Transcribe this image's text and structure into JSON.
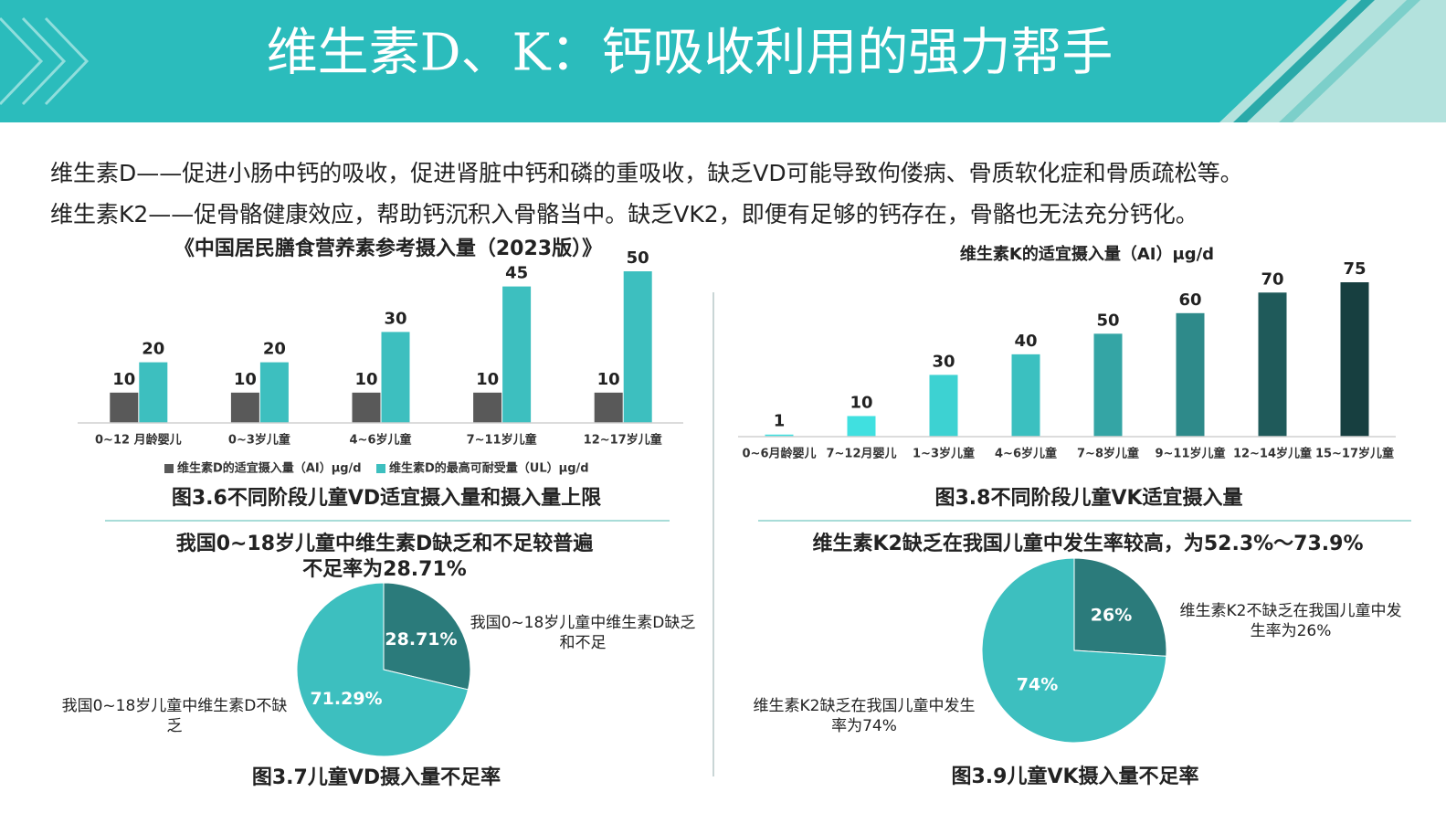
{
  "header": {
    "title": "维生素D、K：钙吸收利用的强力帮手"
  },
  "paragraphs": [
    "维生素D——促进小肠中钙的吸收，促进肾脏中钙和磷的重吸收，缺乏VD可能导致佝偻病、骨质软化症和骨质疏松等。",
    "维生素K2——促骨骼健康效应，帮助钙沉积入骨骼当中。缺乏VK2，即便有足够的钙存在，骨骼也无法充分钙化。"
  ],
  "chart_data": [
    {
      "type": "bar",
      "title": "《中国居民膳食营养素参考摄入量（2023版）》",
      "caption": "图3.6不同阶段儿童VD适宜摄入量和摄入量上限",
      "categories": [
        "0~12 月龄婴儿",
        "0~3岁儿童",
        "4~6岁儿童",
        "7~11岁儿童",
        "12~17岁儿童"
      ],
      "series": [
        {
          "name": "维生素D的适宜摄入量（AI）μg/d",
          "color": "#595959",
          "values": [
            10,
            10,
            10,
            10,
            10
          ]
        },
        {
          "name": "维生素D的最高可耐受量（UL）μg/d",
          "color": "#3dbfbf",
          "values": [
            20,
            20,
            30,
            45,
            50
          ]
        }
      ],
      "legend": "bottom"
    },
    {
      "type": "bar",
      "title": "维生素K的适宜摄入量（AI）μg/d",
      "caption": "图3.8不同阶段儿童VK适宜摄入量",
      "categories": [
        "0~6月龄婴儿",
        "7~12月婴儿",
        "1~3岁儿童",
        "4~6岁儿童",
        "7~8岁儿童",
        "9~11岁儿童",
        "12~14岁儿童",
        "15~17岁儿童"
      ],
      "values": [
        1,
        10,
        30,
        40,
        50,
        60,
        70,
        75
      ],
      "colors": [
        "#3fe0e0",
        "#40e0e0",
        "#3dd2d2",
        "#3bc0c0",
        "#34a5a5",
        "#2e8a8a",
        "#1f5a5a",
        "#173f40"
      ]
    },
    {
      "type": "pie",
      "title": "我国0~18岁儿童中维生素D缺乏和不足较普遍",
      "subtitle": "不足率为28.71%",
      "caption": "图3.7儿童VD摄入量不足率",
      "categories": [
        "我国0~18岁儿童中维生素D缺乏和不足",
        "我国0~18岁儿童中维生素D不缺乏"
      ],
      "values": [
        28.71,
        71.29
      ],
      "value_labels": [
        "28.71%",
        "71.29%"
      ],
      "colors": [
        "#2b7b7b",
        "#3dbfbf"
      ]
    },
    {
      "type": "pie",
      "title": "维生素K2缺乏在我国儿童中发生率较高，为52.3%～73.9%",
      "caption": "图3.9儿童VK摄入量不足率",
      "categories": [
        "维生素K2不缺乏在我国儿童中发生率为26%",
        "维生素K2缺乏在我国儿童中发生率为74%"
      ],
      "values": [
        26,
        74
      ],
      "value_labels": [
        "26%",
        "74%"
      ],
      "colors": [
        "#2b7b7b",
        "#3dbfbf"
      ]
    }
  ]
}
